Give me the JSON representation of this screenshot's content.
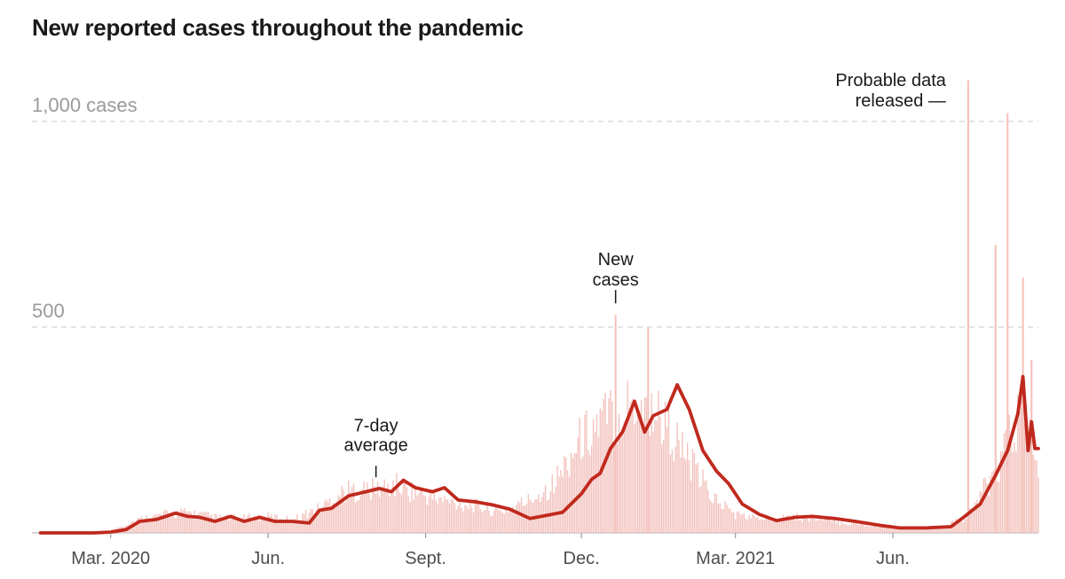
{
  "chart_data": {
    "type": "bar",
    "title": "New reported cases throughout the pandemic",
    "y_axis": {
      "range": [
        0,
        1000
      ],
      "ticks": [
        {
          "value": 1000,
          "label": "1,000 cases"
        },
        {
          "value": 500,
          "label": "500"
        }
      ],
      "grid": true
    },
    "x_axis": {
      "range": [
        "2020-01-15",
        "2021-08-25"
      ],
      "ticks": [
        {
          "date": "2020-03-01",
          "label": "Mar. 2020"
        },
        {
          "date": "2020-06-01",
          "label": "Jun."
        },
        {
          "date": "2020-09-01",
          "label": "Sept."
        },
        {
          "date": "2020-12-01",
          "label": "Dec."
        },
        {
          "date": "2021-03-01",
          "label": "Mar. 2021"
        },
        {
          "date": "2021-06-01",
          "label": "Jun."
        }
      ]
    },
    "series": [
      {
        "name": "New cases",
        "kind": "daily-bars",
        "color": "#f2c2bd",
        "points": [
          [
            "2020-01-20",
            0
          ],
          [
            "2020-02-15",
            0
          ],
          [
            "2020-03-01",
            5
          ],
          [
            "2020-03-15",
            30
          ],
          [
            "2020-04-01",
            45
          ],
          [
            "2020-04-15",
            50
          ],
          [
            "2020-05-01",
            38
          ],
          [
            "2020-05-15",
            35
          ],
          [
            "2020-06-01",
            40
          ],
          [
            "2020-06-15",
            32
          ],
          [
            "2020-07-01",
            60
          ],
          [
            "2020-07-15",
            100
          ],
          [
            "2020-08-01",
            105
          ],
          [
            "2020-08-15",
            115
          ],
          [
            "2020-09-01",
            90
          ],
          [
            "2020-09-15",
            75
          ],
          [
            "2020-10-01",
            65
          ],
          [
            "2020-10-15",
            50
          ],
          [
            "2020-11-01",
            80
          ],
          [
            "2020-11-15",
            120
          ],
          [
            "2020-12-01",
            230
          ],
          [
            "2020-12-15",
            280
          ],
          [
            "2021-01-01",
            320
          ],
          [
            "2021-01-15",
            290
          ],
          [
            "2021-02-01",
            180
          ],
          [
            "2021-02-15",
            90
          ],
          [
            "2021-03-01",
            45
          ],
          [
            "2021-03-15",
            35
          ],
          [
            "2021-04-01",
            40
          ],
          [
            "2021-04-15",
            35
          ],
          [
            "2021-05-01",
            25
          ],
          [
            "2021-06-01",
            15
          ],
          [
            "2021-06-15",
            12
          ],
          [
            "2021-07-01",
            15
          ],
          [
            "2021-07-15",
            40
          ],
          [
            "2021-08-01",
            160
          ],
          [
            "2021-08-15",
            290
          ],
          [
            "2021-08-25",
            170
          ]
        ],
        "spikes": [
          [
            "2020-12-21",
            530
          ],
          [
            "2021-01-09",
            500
          ],
          [
            "2021-07-15",
            1100
          ],
          [
            "2021-07-31",
            700
          ],
          [
            "2021-08-07",
            1020
          ],
          [
            "2021-08-16",
            620
          ],
          [
            "2021-08-21",
            420
          ]
        ]
      },
      {
        "name": "7-day average",
        "kind": "line",
        "color": "#c0291d",
        "points": [
          [
            "2020-01-20",
            0
          ],
          [
            "2020-02-20",
            0
          ],
          [
            "2020-03-01",
            2
          ],
          [
            "2020-03-10",
            8
          ],
          [
            "2020-03-18",
            28
          ],
          [
            "2020-03-28",
            33
          ],
          [
            "2020-04-08",
            48
          ],
          [
            "2020-04-15",
            40
          ],
          [
            "2020-04-22",
            38
          ],
          [
            "2020-05-01",
            28
          ],
          [
            "2020-05-10",
            40
          ],
          [
            "2020-05-18",
            28
          ],
          [
            "2020-05-27",
            38
          ],
          [
            "2020-06-05",
            28
          ],
          [
            "2020-06-15",
            28
          ],
          [
            "2020-06-25",
            24
          ],
          [
            "2020-07-01",
            55
          ],
          [
            "2020-07-08",
            60
          ],
          [
            "2020-07-18",
            90
          ],
          [
            "2020-07-28",
            100
          ],
          [
            "2020-08-05",
            108
          ],
          [
            "2020-08-12",
            100
          ],
          [
            "2020-08-19",
            128
          ],
          [
            "2020-08-26",
            110
          ],
          [
            "2020-09-05",
            100
          ],
          [
            "2020-09-12",
            110
          ],
          [
            "2020-09-20",
            80
          ],
          [
            "2020-10-01",
            75
          ],
          [
            "2020-10-10",
            68
          ],
          [
            "2020-10-20",
            58
          ],
          [
            "2020-11-01",
            35
          ],
          [
            "2020-11-10",
            42
          ],
          [
            "2020-11-20",
            50
          ],
          [
            "2020-12-01",
            95
          ],
          [
            "2020-12-07",
            130
          ],
          [
            "2020-12-12",
            145
          ],
          [
            "2020-12-18",
            205
          ],
          [
            "2020-12-25",
            245
          ],
          [
            "2021-01-01",
            320
          ],
          [
            "2021-01-07",
            245
          ],
          [
            "2021-01-12",
            285
          ],
          [
            "2021-01-20",
            300
          ],
          [
            "2021-01-26",
            360
          ],
          [
            "2021-02-02",
            300
          ],
          [
            "2021-02-10",
            200
          ],
          [
            "2021-02-18",
            150
          ],
          [
            "2021-02-25",
            120
          ],
          [
            "2021-03-05",
            70
          ],
          [
            "2021-03-15",
            45
          ],
          [
            "2021-03-25",
            30
          ],
          [
            "2021-04-05",
            38
          ],
          [
            "2021-04-15",
            40
          ],
          [
            "2021-04-28",
            35
          ],
          [
            "2021-05-10",
            28
          ],
          [
            "2021-05-25",
            18
          ],
          [
            "2021-06-05",
            12
          ],
          [
            "2021-06-20",
            12
          ],
          [
            "2021-07-05",
            15
          ],
          [
            "2021-07-13",
            40
          ],
          [
            "2021-07-22",
            70
          ],
          [
            "2021-07-31",
            140
          ],
          [
            "2021-08-07",
            200
          ],
          [
            "2021-08-13",
            290
          ],
          [
            "2021-08-16",
            380
          ],
          [
            "2021-08-19",
            200
          ],
          [
            "2021-08-21",
            270
          ],
          [
            "2021-08-23",
            205
          ],
          [
            "2021-08-25",
            205
          ]
        ]
      }
    ],
    "annotations": [
      {
        "lines": [
          "7-day",
          "average"
        ],
        "date": "2020-08-03",
        "value": 105
      },
      {
        "lines": [
          "New",
          "cases"
        ],
        "date": "2020-12-21",
        "value": 530
      },
      {
        "lines": [
          "Probable data",
          "released —"
        ],
        "date": "2021-07-15",
        "value": 1100
      }
    ]
  }
}
